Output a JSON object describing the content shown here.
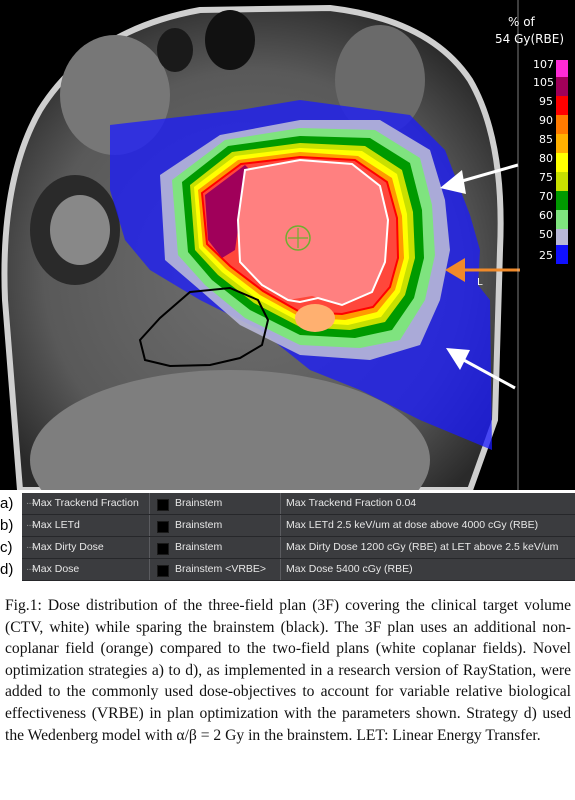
{
  "colorbar": {
    "title_line1": "% of",
    "title_line2": "54 Gy(RBE)",
    "levels": [
      {
        "label": "107",
        "color": "#ff2bd6"
      },
      {
        "label": "105",
        "color": "#a0005a"
      },
      {
        "label": "95",
        "color": "#ff0000"
      },
      {
        "label": "90",
        "color": "#ff7a00"
      },
      {
        "label": "85",
        "color": "#ffb000"
      },
      {
        "label": "80",
        "color": "#ffff00"
      },
      {
        "label": "75",
        "color": "#c8e000"
      },
      {
        "label": "70",
        "color": "#009a00"
      },
      {
        "label": "60",
        "color": "#7fe37f"
      },
      {
        "label": "50",
        "color": "#b8b8d8"
      },
      {
        "label": "25",
        "color": "#1010ff"
      }
    ]
  },
  "image_marker": "L",
  "table": {
    "rows": [
      {
        "letter": "a)",
        "function": "Max Trackend Fraction",
        "roi": "Brainstem",
        "description": "Max Trackend Fraction 0.04"
      },
      {
        "letter": "b)",
        "function": "Max LETd",
        "roi": "Brainstem",
        "description": "Max LETd 2.5 keV/um at dose above 4000 cGy (RBE)"
      },
      {
        "letter": "c)",
        "function": "Max Dirty Dose",
        "roi": "Brainstem",
        "description": "Max Dirty Dose 1200 cGy (RBE) at LET   above 2.5 keV/um"
      },
      {
        "letter": "d)",
        "function": "Max Dose",
        "roi": "Brainstem <VRBE>",
        "description": "Max Dose 5400 cGy (RBE)"
      }
    ]
  },
  "caption": "Fig.1: Dose distribution of the three-field plan (3F) covering the clinical target volume (CTV, white) while sparing the brainstem (black). The 3F plan uses an additional non-coplanar field (orange) compared to the two-field plans (white coplanar fields). Novel optimization strategies a) to d), as implemented in a research version of RayStation, were added to the commonly used dose-objectives to account for  variable relative biological effectiveness (VRBE) in plan optimization with the parameters shown. Strategy d) used the Wedenberg model with α/β = 2 Gy in the brainstem. LET: Linear Energy Transfer."
}
